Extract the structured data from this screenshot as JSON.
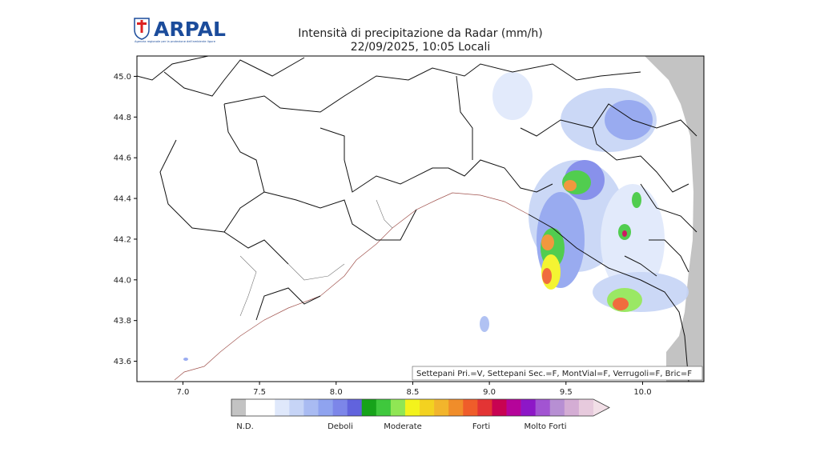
{
  "header": {
    "logo": "ARPAL",
    "logo_caption": "Agenzia regionale per la protezione dell'ambiente ligure"
  },
  "chart_data": {
    "type": "map",
    "title": "Intensità di precipitazione da Radar (mm/h)",
    "subtitle": "22/09/2025, 10:05 Locali",
    "xlim": [
      6.7,
      10.4
    ],
    "ylim": [
      43.5,
      45.1
    ],
    "xticks": [
      {
        "value": 7,
        "label": "7.0"
      },
      7.5,
      {
        "value": 8,
        "label": "8.0"
      },
      8.5,
      {
        "value": 9,
        "label": "9.0"
      },
      9.5,
      {
        "value": 10,
        "label": "10.0"
      }
    ],
    "yticks": [
      43.6,
      43.8,
      {
        "value": 44,
        "label": "44.0"
      },
      44.2,
      44.4,
      44.6,
      44.8,
      {
        "value": 45,
        "label": "45.0"
      }
    ],
    "note": "Settepani Pri.=V, Settepani Sec.=F, MontVial=F, Verrugoli=F, Bric=F",
    "colorbar": {
      "colors": [
        "#c3c3c3",
        "#ffffff",
        "#ffffff",
        "#dfe8fb",
        "#c6d4f6",
        "#a9bbf2",
        "#8fa3ef",
        "#7c86e9",
        "#6163dd",
        "#16a31a",
        "#3fc83d",
        "#90e654",
        "#f3f31c",
        "#f3d220",
        "#f2b52c",
        "#f08d2a",
        "#ef5d2a",
        "#e33434",
        "#c80352",
        "#b5049a",
        "#8d17c7",
        "#a254d2",
        "#b78fd3",
        "#d4add4",
        "#e7cadd",
        "#f2dfe7"
      ],
      "labels": [
        "N.D.",
        "Deboli",
        "Moderate",
        "Forti",
        "Molto Forti"
      ]
    }
  }
}
